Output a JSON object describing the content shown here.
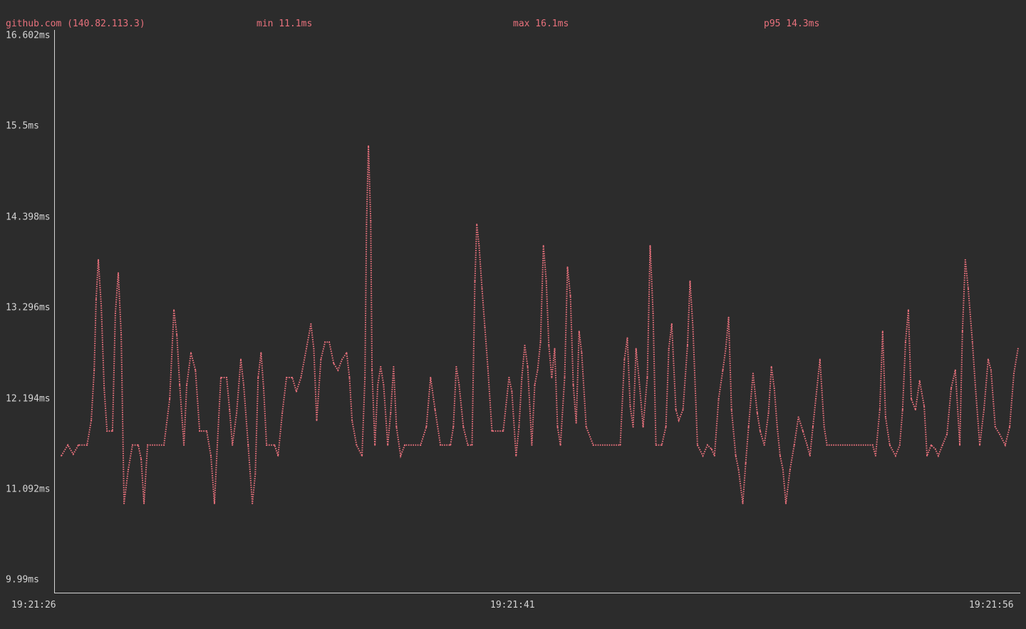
{
  "header": {
    "host": "github.com (140.82.113.3)",
    "min": "min 11.1ms",
    "max": "max 16.1ms",
    "p95": "p95 14.3ms"
  },
  "colors": {
    "background": "#2c2c2c",
    "series": "#e8717c",
    "axis": "#d4d4d4"
  },
  "chart_data": {
    "type": "line",
    "style": "braille-dotted",
    "grid": false,
    "ylim": [
      9.99,
      16.602
    ],
    "y_ticks": [
      "16.602ms",
      "15.5ms",
      "14.398ms",
      "13.296ms",
      "12.194ms",
      "11.092ms",
      "9.99ms"
    ],
    "y_tick_values": [
      16.602,
      15.5,
      14.398,
      13.296,
      12.194,
      11.092,
      9.99
    ],
    "x_ticks": [
      "19:21:26",
      "19:21:41",
      "19:21:56"
    ],
    "series": [
      {
        "name": "github.com (140.82.113.3)",
        "points": [
          [
            "19:21:26.18",
            11.5
          ],
          [
            "19:21:26.38",
            11.63
          ],
          [
            "19:21:26.55",
            11.52
          ],
          [
            "19:21:26.71",
            11.63
          ],
          [
            "19:21:26.98",
            11.63
          ],
          [
            "19:21:27.11",
            11.93
          ],
          [
            "19:21:27.20",
            12.54
          ],
          [
            "19:21:27.26",
            13.4
          ],
          [
            "19:21:27.33",
            13.88
          ],
          [
            "19:21:27.42",
            13.32
          ],
          [
            "19:21:27.51",
            12.32
          ],
          [
            "19:21:27.60",
            11.8
          ],
          [
            "19:21:27.77",
            11.8
          ],
          [
            "19:21:27.86",
            13.23
          ],
          [
            "19:21:27.95",
            13.72
          ],
          [
            "19:21:28.04",
            12.97
          ],
          [
            "19:21:28.13",
            10.92
          ],
          [
            "19:21:28.26",
            11.33
          ],
          [
            "19:21:28.39",
            11.63
          ],
          [
            "19:21:28.57",
            11.63
          ],
          [
            "19:21:28.66",
            11.46
          ],
          [
            "19:21:28.75",
            10.92
          ],
          [
            "19:21:28.86",
            11.63
          ],
          [
            "19:21:29.37",
            11.63
          ],
          [
            "19:21:29.55",
            12.19
          ],
          [
            "19:21:29.68",
            13.27
          ],
          [
            "19:21:29.77",
            12.97
          ],
          [
            "19:21:29.86",
            12.36
          ],
          [
            "19:21:29.99",
            11.63
          ],
          [
            "19:21:30.08",
            12.36
          ],
          [
            "19:21:30.21",
            12.75
          ],
          [
            "19:21:30.35",
            12.54
          ],
          [
            "19:21:30.48",
            11.8
          ],
          [
            "19:21:30.70",
            11.8
          ],
          [
            "19:21:30.83",
            11.5
          ],
          [
            "19:21:30.94",
            10.92
          ],
          [
            "19:21:31.03",
            11.63
          ],
          [
            "19:21:31.14",
            12.45
          ],
          [
            "19:21:31.32",
            12.45
          ],
          [
            "19:21:31.41",
            12.06
          ],
          [
            "19:21:31.50",
            11.63
          ],
          [
            "19:21:31.63",
            12.02
          ],
          [
            "19:21:31.76",
            12.67
          ],
          [
            "19:21:31.85",
            12.36
          ],
          [
            "19:21:31.99",
            11.63
          ],
          [
            "19:21:32.12",
            10.92
          ],
          [
            "19:21:32.21",
            11.28
          ],
          [
            "19:21:32.30",
            12.45
          ],
          [
            "19:21:32.39",
            12.75
          ],
          [
            "19:21:32.47",
            12.32
          ],
          [
            "19:21:32.56",
            11.63
          ],
          [
            "19:21:32.81",
            11.63
          ],
          [
            "19:21:32.92",
            11.5
          ],
          [
            "19:21:33.05",
            12.02
          ],
          [
            "19:21:33.18",
            12.45
          ],
          [
            "19:21:33.36",
            12.45
          ],
          [
            "19:21:33.49",
            12.28
          ],
          [
            "19:21:33.63",
            12.45
          ],
          [
            "19:21:33.80",
            12.8
          ],
          [
            "19:21:33.94",
            13.1
          ],
          [
            "19:21:34.03",
            12.8
          ],
          [
            "19:21:34.12",
            11.93
          ],
          [
            "19:21:34.25",
            12.67
          ],
          [
            "19:21:34.38",
            12.88
          ],
          [
            "19:21:34.51",
            12.88
          ],
          [
            "19:21:34.65",
            12.62
          ],
          [
            "19:21:34.78",
            12.54
          ],
          [
            "19:21:34.91",
            12.67
          ],
          [
            "19:21:35.05",
            12.75
          ],
          [
            "19:21:35.14",
            12.45
          ],
          [
            "19:21:35.22",
            11.93
          ],
          [
            "19:21:35.36",
            11.63
          ],
          [
            "19:21:35.53",
            11.5
          ],
          [
            "19:21:35.62",
            12.45
          ],
          [
            "19:21:35.67",
            14.31
          ],
          [
            "19:21:35.73",
            15.26
          ],
          [
            "19:21:35.80",
            14.35
          ],
          [
            "19:21:35.84",
            12.54
          ],
          [
            "19:21:35.93",
            11.63
          ],
          [
            "19:21:36.02",
            12.36
          ],
          [
            "19:21:36.11",
            12.58
          ],
          [
            "19:21:36.20",
            12.36
          ],
          [
            "19:21:36.33",
            11.63
          ],
          [
            "19:21:36.42",
            12.02
          ],
          [
            "19:21:36.51",
            12.58
          ],
          [
            "19:21:36.60",
            11.85
          ],
          [
            "19:21:36.73",
            11.5
          ],
          [
            "19:21:36.86",
            11.63
          ],
          [
            "19:21:37.35",
            11.63
          ],
          [
            "19:21:37.53",
            11.85
          ],
          [
            "19:21:37.66",
            12.45
          ],
          [
            "19:21:37.80",
            12.06
          ],
          [
            "19:21:37.97",
            11.63
          ],
          [
            "19:21:38.28",
            11.63
          ],
          [
            "19:21:38.37",
            11.85
          ],
          [
            "19:21:38.46",
            12.58
          ],
          [
            "19:21:38.55",
            12.36
          ],
          [
            "19:21:38.68",
            11.85
          ],
          [
            "19:21:38.82",
            11.63
          ],
          [
            "19:21:38.95",
            11.63
          ],
          [
            "19:21:39.04",
            13.62
          ],
          [
            "19:21:39.10",
            14.31
          ],
          [
            "19:21:39.17",
            14.05
          ],
          [
            "19:21:39.26",
            13.53
          ],
          [
            "19:21:39.35",
            13.06
          ],
          [
            "19:21:39.44",
            12.58
          ],
          [
            "19:21:39.57",
            11.8
          ],
          [
            "19:21:39.92",
            11.8
          ],
          [
            "19:21:40.10",
            12.45
          ],
          [
            "19:21:40.19",
            12.28
          ],
          [
            "19:21:40.32",
            11.5
          ],
          [
            "19:21:40.41",
            11.85
          ],
          [
            "19:21:40.50",
            12.45
          ],
          [
            "19:21:40.59",
            12.84
          ],
          [
            "19:21:40.68",
            12.58
          ],
          [
            "19:21:40.81",
            11.63
          ],
          [
            "19:21:40.90",
            12.36
          ],
          [
            "19:21:40.99",
            12.54
          ],
          [
            "19:21:41.08",
            12.88
          ],
          [
            "19:21:41.17",
            14.05
          ],
          [
            "19:21:41.26",
            13.62
          ],
          [
            "19:21:41.34",
            12.84
          ],
          [
            "19:21:41.43",
            12.45
          ],
          [
            "19:21:41.52",
            12.8
          ],
          [
            "19:21:41.61",
            11.85
          ],
          [
            "19:21:41.70",
            11.63
          ],
          [
            "19:21:41.83",
            12.45
          ],
          [
            "19:21:41.92",
            13.79
          ],
          [
            "19:21:42.01",
            13.44
          ],
          [
            "19:21:42.10",
            12.36
          ],
          [
            "19:21:42.19",
            11.9
          ],
          [
            "19:21:42.28",
            13.01
          ],
          [
            "19:21:42.36",
            12.75
          ],
          [
            "19:21:42.50",
            11.85
          ],
          [
            "19:21:42.72",
            11.63
          ],
          [
            "19:21:43.56",
            11.63
          ],
          [
            "19:21:43.69",
            12.67
          ],
          [
            "19:21:43.78",
            12.93
          ],
          [
            "19:21:43.87",
            12.1
          ],
          [
            "19:21:43.96",
            11.85
          ],
          [
            "19:21:44.05",
            12.8
          ],
          [
            "19:21:44.14",
            12.45
          ],
          [
            "19:21:44.27",
            11.85
          ],
          [
            "19:21:44.40",
            12.45
          ],
          [
            "19:21:44.49",
            14.05
          ],
          [
            "19:21:44.58",
            13.23
          ],
          [
            "19:21:44.67",
            11.63
          ],
          [
            "19:21:44.85",
            11.63
          ],
          [
            "19:21:44.98",
            11.85
          ],
          [
            "19:21:45.07",
            12.8
          ],
          [
            "19:21:45.16",
            13.1
          ],
          [
            "19:21:45.29",
            12.06
          ],
          [
            "19:21:45.38",
            11.93
          ],
          [
            "19:21:45.51",
            12.06
          ],
          [
            "19:21:45.65",
            12.84
          ],
          [
            "19:21:45.73",
            13.62
          ],
          [
            "19:21:45.82",
            13.06
          ],
          [
            "19:21:45.96",
            11.63
          ],
          [
            "19:21:46.13",
            11.5
          ],
          [
            "19:21:46.27",
            11.63
          ],
          [
            "19:21:46.40",
            11.58
          ],
          [
            "19:21:46.49",
            11.5
          ],
          [
            "19:21:46.62",
            12.19
          ],
          [
            "19:21:46.75",
            12.54
          ],
          [
            "19:21:46.84",
            12.8
          ],
          [
            "19:21:46.93",
            13.18
          ],
          [
            "19:21:47.02",
            12.06
          ],
          [
            "19:21:47.15",
            11.5
          ],
          [
            "19:21:47.24",
            11.33
          ],
          [
            "19:21:47.37",
            10.92
          ],
          [
            "19:21:47.46",
            11.41
          ],
          [
            "19:21:47.55",
            11.85
          ],
          [
            "19:21:47.69",
            12.5
          ],
          [
            "19:21:47.82",
            12.02
          ],
          [
            "19:21:47.91",
            11.8
          ],
          [
            "19:21:48.04",
            11.63
          ],
          [
            "19:21:48.17",
            12.02
          ],
          [
            "19:21:48.26",
            12.58
          ],
          [
            "19:21:48.35",
            12.32
          ],
          [
            "19:21:48.44",
            11.85
          ],
          [
            "19:21:48.53",
            11.5
          ],
          [
            "19:21:48.62",
            11.33
          ],
          [
            "19:21:48.71",
            10.92
          ],
          [
            "19:21:48.84",
            11.33
          ],
          [
            "19:21:48.97",
            11.63
          ],
          [
            "19:21:49.10",
            11.97
          ],
          [
            "19:21:49.24",
            11.8
          ],
          [
            "19:21:49.37",
            11.63
          ],
          [
            "19:21:49.46",
            11.5
          ],
          [
            "19:21:49.55",
            11.85
          ],
          [
            "19:21:49.64",
            12.19
          ],
          [
            "19:21:49.77",
            12.67
          ],
          [
            "19:21:49.90",
            11.85
          ],
          [
            "19:21:49.99",
            11.63
          ],
          [
            "19:21:51.41",
            11.63
          ],
          [
            "19:21:51.50",
            11.5
          ],
          [
            "19:21:51.63",
            12.06
          ],
          [
            "19:21:51.72",
            13.01
          ],
          [
            "19:21:51.81",
            11.97
          ],
          [
            "19:21:51.94",
            11.63
          ],
          [
            "19:21:52.12",
            11.5
          ],
          [
            "19:21:52.25",
            11.63
          ],
          [
            "19:21:52.34",
            12.06
          ],
          [
            "19:21:52.43",
            12.88
          ],
          [
            "19:21:52.52",
            13.27
          ],
          [
            "19:21:52.61",
            12.19
          ],
          [
            "19:21:52.74",
            12.06
          ],
          [
            "19:21:52.87",
            12.41
          ],
          [
            "19:21:53.01",
            12.1
          ],
          [
            "19:21:53.10",
            11.5
          ],
          [
            "19:21:53.23",
            11.63
          ],
          [
            "19:21:53.36",
            11.58
          ],
          [
            "19:21:53.45",
            11.5
          ],
          [
            "19:21:53.58",
            11.63
          ],
          [
            "19:21:53.72",
            11.76
          ],
          [
            "19:21:53.85",
            12.32
          ],
          [
            "19:21:53.98",
            12.54
          ],
          [
            "19:21:54.12",
            11.63
          ],
          [
            "19:21:54.20",
            13.01
          ],
          [
            "19:21:54.29",
            13.88
          ],
          [
            "19:21:54.38",
            13.53
          ],
          [
            "19:21:54.51",
            12.88
          ],
          [
            "19:21:54.60",
            12.36
          ],
          [
            "19:21:54.74",
            11.63
          ],
          [
            "19:21:54.87",
            12.06
          ],
          [
            "19:21:55.00",
            12.67
          ],
          [
            "19:21:55.09",
            12.54
          ],
          [
            "19:21:55.22",
            11.85
          ],
          [
            "19:21:55.36",
            11.76
          ],
          [
            "19:21:55.53",
            11.63
          ],
          [
            "19:21:55.67",
            11.85
          ],
          [
            "19:21:55.80",
            12.5
          ],
          [
            "19:21:55.93",
            12.8
          ]
        ]
      }
    ]
  }
}
